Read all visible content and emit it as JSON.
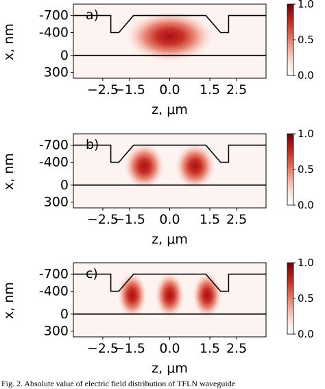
{
  "chart_data": [
    {
      "type": "heatmap",
      "panel_label": "a)",
      "xlabel": "z, μm",
      "ylabel": "x, nm",
      "xticks": [
        "−2.5",
        "−1.5",
        "0.0",
        "1.5",
        "2.5"
      ],
      "xtick_values": [
        -2.5,
        -1.5,
        0.0,
        1.5,
        2.5
      ],
      "yticks": [
        "-700",
        "-400",
        "0",
        "300"
      ],
      "ytick_values": [
        -700,
        -400,
        0,
        300
      ],
      "xlim": [
        -3.6,
        3.6
      ],
      "ylim": [
        400,
        -900
      ],
      "colorbar": {
        "ticks": [
          "1.0",
          "0.5",
          "0.0"
        ],
        "tick_values": [
          1.0,
          0.5,
          0.0
        ],
        "range": [
          0,
          1
        ]
      },
      "mode_lobes_z_um": [
        0.0
      ],
      "mode_lobe_x_nm": -330
    },
    {
      "type": "heatmap",
      "panel_label": "b)",
      "xlabel": "z, μm",
      "ylabel": "x, nm",
      "xticks": [
        "−2.5",
        "−1.5",
        "0.0",
        "1.5",
        "2.5"
      ],
      "xtick_values": [
        -2.5,
        -1.5,
        0.0,
        1.5,
        2.5
      ],
      "yticks": [
        "-700",
        "-400",
        "0",
        "300"
      ],
      "ytick_values": [
        -700,
        -400,
        0,
        300
      ],
      "xlim": [
        -3.6,
        3.6
      ],
      "ylim": [
        400,
        -900
      ],
      "colorbar": {
        "ticks": [
          "1.0",
          "0.5",
          "0.0"
        ],
        "tick_values": [
          1.0,
          0.5,
          0.0
        ],
        "range": [
          0,
          1
        ]
      },
      "mode_lobes_z_um": [
        -0.95,
        0.95
      ],
      "mode_lobe_x_nm": -330
    },
    {
      "type": "heatmap",
      "panel_label": "c)",
      "xlabel": "z, μm",
      "ylabel": "x, nm",
      "xticks": [
        "−2.5",
        "−1.5",
        "0.0",
        "1.5",
        "2.5"
      ],
      "xtick_values": [
        -2.5,
        -1.5,
        0.0,
        1.5,
        2.5
      ],
      "yticks": [
        "-700",
        "-400",
        "0",
        "300"
      ],
      "ytick_values": [
        -700,
        -400,
        0,
        300
      ],
      "xlim": [
        -3.6,
        3.6
      ],
      "ylim": [
        400,
        -900
      ],
      "colorbar": {
        "ticks": [
          "1.0",
          "0.5",
          "0.0"
        ],
        "tick_values": [
          1.0,
          0.5,
          0.0
        ],
        "range": [
          0,
          1
        ]
      },
      "mode_lobes_z_um": [
        -1.4,
        0.0,
        1.4
      ],
      "mode_lobe_x_nm": -330
    }
  ],
  "waveguide_outline_z_um": [
    -3.6,
    -2.2,
    -2.2,
    -1.9,
    -1.35,
    1.35,
    1.9,
    2.2,
    2.2,
    3.6
  ],
  "waveguide_outline_x_nm": [
    -700,
    -700,
    -400,
    -400,
    -700,
    -700,
    -400,
    -400,
    -700,
    -700
  ],
  "interface_x_nm": 0,
  "colormap": [
    "#ffffff",
    "#fbe6e2",
    "#f2aea0",
    "#e0604a",
    "#c0281e",
    "#8e0c10",
    "#67000d"
  ],
  "caption": "Fig. 2.  Absolute value of electric field distribution of TFLN waveguide"
}
